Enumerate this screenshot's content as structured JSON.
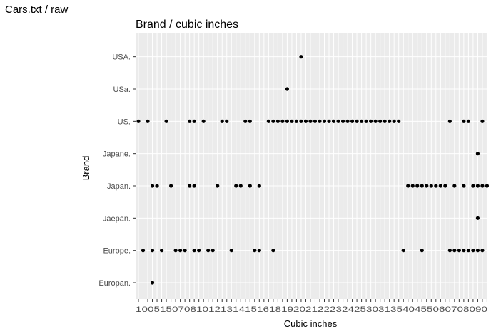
{
  "window": {
    "title": "Cars.txt / raw"
  },
  "chart_data": {
    "type": "scatter",
    "title": "Brand / cubic inches",
    "xlabel": "Cubic inches",
    "ylabel": "Brand",
    "x_axis": "categorical",
    "grid": true,
    "legend": "none",
    "background_color": "#ebebeb",
    "grid_color": "#ffffff",
    "point_color": "#000000",
    "y_categories": [
      "Europan.",
      "Europe.",
      "Jaepan.",
      "Japan.",
      "Japane.",
      "US.",
      "USa.",
      "USA."
    ],
    "x_ticks_visible": "1005/15/07/08/10/12/13/14/15/16/18/19/20/21/22/23/24/25/30/31/35/40/45/50/60/70/80/90 (overlapping)",
    "x_categories_count": 76,
    "points": [
      {
        "brand": "US.",
        "x": [
          0,
          2,
          6,
          11,
          12,
          14,
          18,
          19,
          23,
          24,
          28,
          29,
          30,
          31,
          32,
          33,
          34,
          35,
          36,
          37,
          38,
          39,
          40,
          41,
          42,
          43,
          44,
          45,
          46,
          47,
          48,
          49,
          50,
          51,
          52,
          53,
          54,
          55,
          56,
          67,
          70,
          71,
          74
        ]
      },
      {
        "brand": "USa.",
        "x": [
          32
        ]
      },
      {
        "brand": "USA.",
        "x": [
          35
        ]
      },
      {
        "brand": "Japane.",
        "x": [
          73
        ]
      },
      {
        "brand": "Japan.",
        "x": [
          3,
          4,
          7,
          11,
          12,
          17,
          21,
          22,
          24,
          26,
          58,
          59,
          60,
          61,
          62,
          63,
          64,
          65,
          66,
          68,
          70,
          72,
          73,
          74,
          75
        ]
      },
      {
        "brand": "Jaepan.",
        "x": [
          73
        ]
      },
      {
        "brand": "Europe.",
        "x": [
          1,
          3,
          5,
          8,
          9,
          10,
          12,
          13,
          15,
          16,
          20,
          25,
          26,
          29,
          57,
          61,
          67,
          68,
          69,
          70,
          71,
          72,
          73,
          74
        ]
      },
      {
        "brand": "Europan.",
        "x": [
          3
        ]
      }
    ]
  }
}
